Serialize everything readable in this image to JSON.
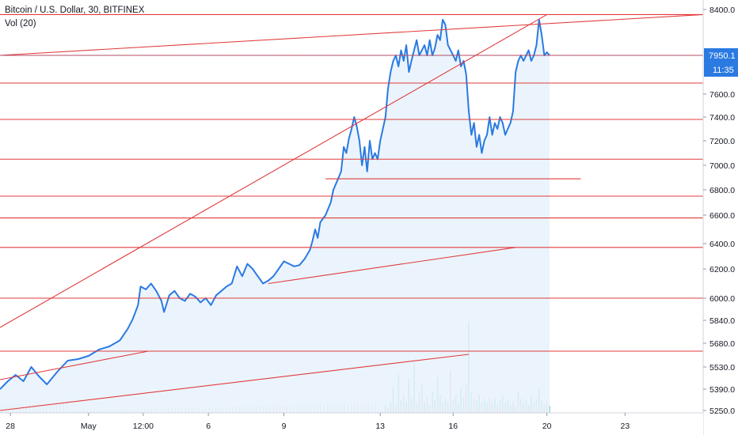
{
  "chart_data": {
    "type": "line",
    "title": "Bitcoin / U.S. Dollar, 30, BITFINEX",
    "indicator": "Vol (20)",
    "x_ticks": [
      "28",
      "May",
      "12:00",
      "6",
      "9",
      "13",
      "16",
      "20",
      "23"
    ],
    "y_ticks": [
      "8400.0",
      "7600.0",
      "7400.0",
      "7200.0",
      "7000.0",
      "6800.0",
      "6600.0",
      "6400.0",
      "6200.0",
      "6000.0",
      "5840.0",
      "5680.0",
      "5530.0",
      "5390.0",
      "5250.0"
    ],
    "current_price": "7950.1",
    "countdown": "11:35",
    "series": [
      {
        "name": "BTCUSD",
        "points": [
          [
            0,
            5390
          ],
          [
            3,
            5440
          ],
          [
            6,
            5480
          ],
          [
            9,
            5440
          ],
          [
            12,
            5530
          ],
          [
            15,
            5470
          ],
          [
            18,
            5420
          ],
          [
            22,
            5500
          ],
          [
            26,
            5570
          ],
          [
            30,
            5580
          ],
          [
            34,
            5600
          ],
          [
            38,
            5640
          ],
          [
            42,
            5660
          ],
          [
            46,
            5700
          ],
          [
            49,
            5780
          ],
          [
            51,
            5850
          ],
          [
            53,
            5950
          ],
          [
            54,
            6080
          ],
          [
            56,
            6060
          ],
          [
            58,
            6100
          ],
          [
            60,
            6050
          ],
          [
            62,
            5980
          ],
          [
            63,
            5900
          ],
          [
            65,
            6020
          ],
          [
            67,
            6050
          ],
          [
            69,
            6000
          ],
          [
            71,
            5980
          ],
          [
            73,
            6030
          ],
          [
            75,
            6010
          ],
          [
            77,
            5970
          ],
          [
            79,
            6000
          ],
          [
            81,
            5950
          ],
          [
            83,
            6020
          ],
          [
            85,
            6050
          ],
          [
            87,
            6080
          ],
          [
            89,
            6100
          ],
          [
            91,
            6220
          ],
          [
            93,
            6150
          ],
          [
            95,
            6240
          ],
          [
            97,
            6200
          ],
          [
            99,
            6150
          ],
          [
            101,
            6100
          ],
          [
            103,
            6120
          ],
          [
            105,
            6150
          ],
          [
            107,
            6200
          ],
          [
            109,
            6260
          ],
          [
            111,
            6240
          ],
          [
            113,
            6220
          ],
          [
            115,
            6230
          ],
          [
            117,
            6280
          ],
          [
            119,
            6350
          ],
          [
            120,
            6420
          ],
          [
            121,
            6500
          ],
          [
            122,
            6440
          ],
          [
            123,
            6550
          ],
          [
            125,
            6600
          ],
          [
            127,
            6700
          ],
          [
            128,
            6800
          ],
          [
            129,
            6850
          ],
          [
            130,
            6900
          ],
          [
            131,
            6950
          ],
          [
            132,
            7150
          ],
          [
            133,
            7100
          ],
          [
            134,
            7220
          ],
          [
            135,
            7300
          ],
          [
            136,
            7400
          ],
          [
            137,
            7320
          ],
          [
            138,
            7200
          ],
          [
            139,
            7000
          ],
          [
            140,
            7150
          ],
          [
            141,
            6950
          ],
          [
            142,
            7200
          ],
          [
            143,
            7050
          ],
          [
            144,
            7100
          ],
          [
            145,
            7050
          ],
          [
            146,
            7200
          ],
          [
            147,
            7300
          ],
          [
            148,
            7400
          ],
          [
            149,
            7650
          ],
          [
            150,
            7800
          ],
          [
            151,
            7900
          ],
          [
            152,
            7950
          ],
          [
            153,
            7850
          ],
          [
            154,
            8000
          ],
          [
            155,
            7900
          ],
          [
            156,
            8050
          ],
          [
            157,
            7800
          ],
          [
            158,
            7900
          ],
          [
            159,
            8000
          ],
          [
            160,
            8100
          ],
          [
            161,
            7950
          ],
          [
            162,
            8000
          ],
          [
            163,
            8050
          ],
          [
            164,
            7950
          ],
          [
            165,
            8100
          ],
          [
            166,
            7950
          ],
          [
            167,
            8020
          ],
          [
            168,
            8150
          ],
          [
            169,
            8100
          ],
          [
            170,
            8300
          ],
          [
            171,
            8250
          ],
          [
            172,
            8050
          ],
          [
            173,
            8000
          ],
          [
            174,
            7950
          ],
          [
            175,
            7900
          ],
          [
            176,
            8000
          ],
          [
            177,
            7850
          ],
          [
            178,
            7900
          ],
          [
            179,
            7780
          ],
          [
            180,
            7450
          ],
          [
            181,
            7250
          ],
          [
            182,
            7350
          ],
          [
            183,
            7150
          ],
          [
            184,
            7250
          ],
          [
            185,
            7100
          ],
          [
            186,
            7200
          ],
          [
            187,
            7250
          ],
          [
            188,
            7400
          ],
          [
            189,
            7250
          ],
          [
            190,
            7350
          ],
          [
            191,
            7300
          ],
          [
            192,
            7400
          ],
          [
            193,
            7350
          ],
          [
            194,
            7250
          ],
          [
            195,
            7300
          ],
          [
            196,
            7350
          ],
          [
            197,
            7450
          ],
          [
            198,
            7800
          ],
          [
            199,
            7900
          ],
          [
            200,
            7950
          ],
          [
            201,
            7900
          ],
          [
            202,
            7950
          ],
          [
            203,
            8000
          ],
          [
            204,
            7900
          ],
          [
            205,
            7950
          ],
          [
            206,
            8050
          ],
          [
            207,
            8300
          ],
          [
            208,
            8150
          ],
          [
            209,
            7950
          ],
          [
            210,
            7980
          ],
          [
            211,
            7950
          ]
        ]
      }
    ],
    "volume": [
      [
        148,
        12
      ],
      [
        149,
        8
      ],
      [
        150,
        14
      ],
      [
        151,
        35
      ],
      [
        152,
        10
      ],
      [
        153,
        55
      ],
      [
        154,
        18
      ],
      [
        155,
        24
      ],
      [
        156,
        15
      ],
      [
        157,
        48
      ],
      [
        158,
        20
      ],
      [
        159,
        70
      ],
      [
        160,
        14
      ],
      [
        161,
        28
      ],
      [
        162,
        40
      ],
      [
        163,
        16
      ],
      [
        164,
        22
      ],
      [
        165,
        12
      ],
      [
        166,
        30
      ],
      [
        167,
        18
      ],
      [
        168,
        50
      ],
      [
        169,
        25
      ],
      [
        170,
        14
      ],
      [
        171,
        20
      ],
      [
        172,
        15
      ],
      [
        173,
        60
      ],
      [
        174,
        18
      ],
      [
        175,
        25
      ],
      [
        176,
        14
      ],
      [
        177,
        35
      ],
      [
        178,
        22
      ],
      [
        179,
        40
      ],
      [
        180,
        128
      ],
      [
        181,
        30
      ],
      [
        182,
        20
      ],
      [
        183,
        18
      ],
      [
        184,
        26
      ],
      [
        185,
        14
      ],
      [
        186,
        20
      ],
      [
        187,
        15
      ],
      [
        188,
        22
      ],
      [
        189,
        14
      ],
      [
        190,
        20
      ],
      [
        191,
        12
      ],
      [
        192,
        18
      ],
      [
        193,
        24
      ],
      [
        194,
        15
      ],
      [
        195,
        18
      ],
      [
        196,
        12
      ],
      [
        197,
        16
      ],
      [
        198,
        10
      ],
      [
        199,
        30
      ],
      [
        200,
        20
      ],
      [
        201,
        14
      ],
      [
        202,
        18
      ],
      [
        203,
        12
      ],
      [
        204,
        24
      ],
      [
        205,
        15
      ],
      [
        206,
        20
      ],
      [
        207,
        34
      ],
      [
        208,
        18
      ],
      [
        209,
        12
      ],
      [
        210,
        16
      ],
      [
        211,
        10
      ]
    ],
    "horizontal_levels": [
      8350,
      7950,
      7700,
      7380,
      7050,
      6750,
      6580,
      6370,
      6000,
      5630
    ],
    "trendlines": [
      [
        [
          0,
          5790
        ],
        [
          210,
          8350
        ]
      ],
      [
        [
          0,
          5450
        ],
        [
          57,
          5630
        ]
      ],
      [
        [
          0,
          5250
        ],
        [
          180,
          5610
        ]
      ],
      [
        [
          103,
          6100
        ],
        [
          198,
          6370
        ]
      ],
      [
        [
          125,
          6890
        ],
        [
          223,
          6890
        ]
      ],
      [
        [
          0,
          7950
        ],
        [
          270,
          8350
        ]
      ]
    ],
    "colors": {
      "price_line": "#2a7ae2",
      "price_fill": "#e8f2fd",
      "levels": "#e23b3b",
      "volume_up": "#7fcfb8",
      "volume_down": "#f0a3a3",
      "badge_price": "#2a7ae2",
      "badge_time": "#2a7ae2"
    }
  }
}
